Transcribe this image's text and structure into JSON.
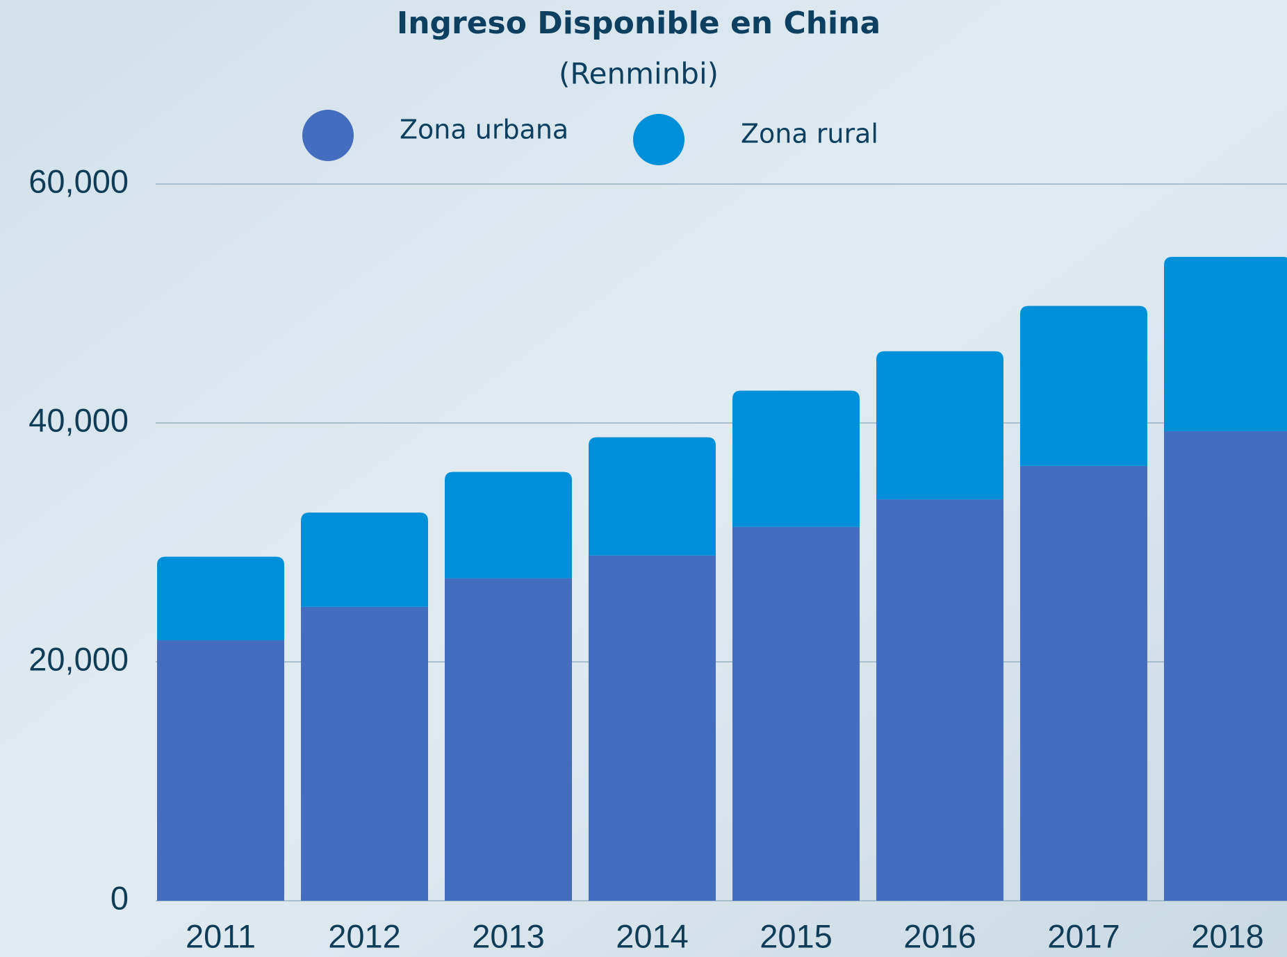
{
  "chart_data": {
    "type": "stacked-bar",
    "title": "Ingreso Disponible en China",
    "subtitle": "(Renminbi)",
    "categories": [
      "2011",
      "2012",
      "2013",
      "2014",
      "2015",
      "2016",
      "2017",
      "2018"
    ],
    "series": [
      {
        "name": "Zona urbana",
        "color": "#456dbf",
        "values": [
          21800,
          24600,
          27000,
          28900,
          31300,
          33600,
          36400,
          39300
        ]
      },
      {
        "name": "Zona rural",
        "color": "#0090d9",
        "values": [
          7000,
          7900,
          8900,
          9900,
          11400,
          12400,
          13400,
          14600
        ]
      }
    ],
    "ylim": [
      0,
      60000
    ],
    "yticks": [
      0,
      {
        "value": 20000,
        "label": "20,000"
      },
      {
        "value": 40000,
        "label": "40,000"
      },
      {
        "value": 60000,
        "label": "60,000"
      }
    ],
    "grid": true
  }
}
